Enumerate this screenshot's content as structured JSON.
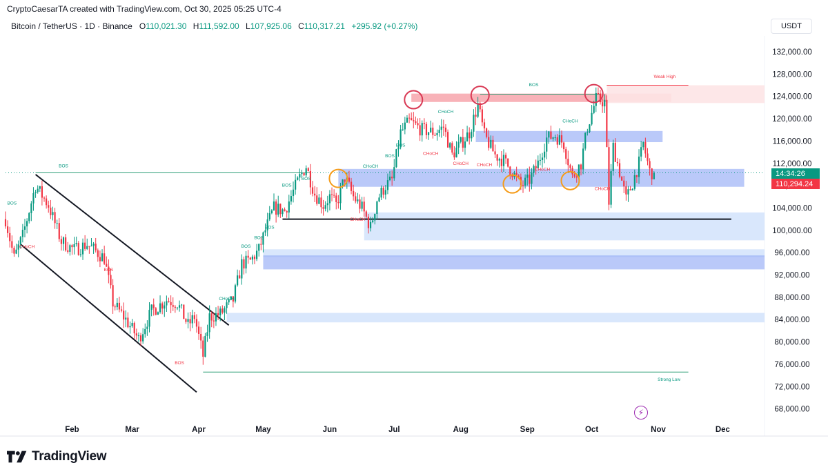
{
  "header": {
    "credit": "CryptoCaesarTA created with TradingView.com, Oct 30, 2025 05:25 UTC-4"
  },
  "symbol": {
    "name": "Bitcoin / TetherUS · 1D · Binance",
    "open_label": "O",
    "open": "110,021.30",
    "high_label": "H",
    "high": "111,592.00",
    "low_label": "L",
    "low": "107,925.06",
    "close_label": "C",
    "close": "110,317.21",
    "change": "+295.92 (+0.27%)"
  },
  "currency": "USDT",
  "price_tags": {
    "time": "14:34:26",
    "price": "110,294.24"
  },
  "footer": {
    "brand": "TradingView",
    "logo_icon": "tradingview-logo-icon"
  },
  "colors": {
    "up": "#089981",
    "down": "#f23645",
    "text": "#131722",
    "blue_zone": "#5b7cf5",
    "light_blue_zone": "#c8dcfa",
    "red_zone": "#f7a8ae",
    "orange": "#f59c1a",
    "circle_red": "#d93a55",
    "bos_green": "#2a9d75"
  },
  "chart_data": {
    "type": "candlestick",
    "title": "Bitcoin / TetherUS · 1D · Binance",
    "ylim": [
      66000,
      136000
    ],
    "yticks": [
      {
        "value": 132000,
        "label": "132,000.00"
      },
      {
        "value": 128000,
        "label": "128,000.00"
      },
      {
        "value": 124000,
        "label": "124,000.00"
      },
      {
        "value": 120000,
        "label": "120,000.00"
      },
      {
        "value": 116000,
        "label": "116,000.00"
      },
      {
        "value": 112000,
        "label": "112,000.00"
      },
      {
        "value": 108000,
        "label": "108,000.00"
      },
      {
        "value": 104000,
        "label": "104,000.00"
      },
      {
        "value": 100000,
        "label": "100,000.00"
      },
      {
        "value": 96000,
        "label": "96,000.00"
      },
      {
        "value": 92000,
        "label": "92,000.00"
      },
      {
        "value": 88000,
        "label": "88,000.00"
      },
      {
        "value": 84000,
        "label": "84,000.00"
      },
      {
        "value": 80000,
        "label": "80,000.00"
      },
      {
        "value": 76000,
        "label": "76,000.00"
      },
      {
        "value": 72000,
        "label": "72,000.00"
      },
      {
        "value": 68000,
        "label": "68,000.00"
      }
    ],
    "xticks": [
      "Feb",
      "Mar",
      "Apr",
      "May",
      "Jun",
      "Jul",
      "Aug",
      "Sep",
      "Oct",
      "Nov",
      "Dec"
    ],
    "x_days": {
      "Feb": 31,
      "Mar": 59,
      "Apr": 90,
      "May": 120,
      "Jun": 151,
      "Jul": 181,
      "Aug": 212,
      "Sep": 243,
      "Oct": 273,
      "Nov": 304,
      "Dec": 334
    },
    "last_day": 302,
    "current_price": 110294.24,
    "path": [
      [
        0,
        102000
      ],
      [
        4,
        95000
      ],
      [
        8,
        99000
      ],
      [
        14,
        108000
      ],
      [
        20,
        104500
      ],
      [
        26,
        98000
      ],
      [
        32,
        96500
      ],
      [
        38,
        97500
      ],
      [
        46,
        95000
      ],
      [
        50,
        87000
      ],
      [
        56,
        84000
      ],
      [
        62,
        80500
      ],
      [
        68,
        85500
      ],
      [
        75,
        87500
      ],
      [
        80,
        87000
      ],
      [
        85,
        83000
      ],
      [
        88,
        84500
      ],
      [
        92,
        77500
      ],
      [
        95,
        84500
      ],
      [
        100,
        85000
      ],
      [
        106,
        87500
      ],
      [
        110,
        94000
      ],
      [
        114,
        94500
      ],
      [
        118,
        96500
      ],
      [
        121,
        100000
      ],
      [
        125,
        104000
      ],
      [
        130,
        103500
      ],
      [
        134,
        107000
      ],
      [
        137,
        109500
      ],
      [
        140,
        111500
      ],
      [
        144,
        106500
      ],
      [
        148,
        104500
      ],
      [
        151,
        106000
      ],
      [
        154,
        104500
      ],
      [
        158,
        109500
      ],
      [
        162,
        106000
      ],
      [
        166,
        104000
      ],
      [
        170,
        100500
      ],
      [
        173,
        105500
      ],
      [
        177,
        108000
      ],
      [
        180,
        109000
      ],
      [
        184,
        117500
      ],
      [
        188,
        119500
      ],
      [
        194,
        118000
      ],
      [
        200,
        117500
      ],
      [
        204,
        118500
      ],
      [
        208,
        113500
      ],
      [
        212,
        115500
      ],
      [
        216,
        117500
      ],
      [
        220,
        122500
      ],
      [
        223,
        117000
      ],
      [
        228,
        113500
      ],
      [
        232,
        112500
      ],
      [
        236,
        110500
      ],
      [
        240,
        108000
      ],
      [
        244,
        109000
      ],
      [
        248,
        112000
      ],
      [
        252,
        116500
      ],
      [
        256,
        117000
      ],
      [
        260,
        115500
      ],
      [
        264,
        109500
      ],
      [
        268,
        112000
      ],
      [
        271,
        118500
      ],
      [
        275,
        123500
      ],
      [
        279,
        123000
      ],
      [
        281,
        105000
      ],
      [
        283,
        115000
      ],
      [
        286,
        110500
      ],
      [
        289,
        105500
      ],
      [
        292,
        108500
      ],
      [
        295,
        112000
      ],
      [
        297,
        115500
      ],
      [
        300,
        110500
      ],
      [
        302,
        110300
      ]
    ],
    "labels": [
      {
        "text": "BOS",
        "day": 27,
        "price": 111300,
        "color": "up"
      },
      {
        "text": "BOS",
        "day": 3,
        "price": 104600,
        "color": "up"
      },
      {
        "text": "CHoCH",
        "day": 10,
        "price": 96800,
        "color": "down"
      },
      {
        "text": "BOS",
        "day": 48,
        "price": 92700,
        "color": "down"
      },
      {
        "text": "BOS",
        "day": 81,
        "price": 76000,
        "color": "down"
      },
      {
        "text": "CHoCH",
        "day": 103,
        "price": 87500,
        "color": "up"
      },
      {
        "text": "BOS",
        "day": 112,
        "price": 96900,
        "color": "up"
      },
      {
        "text": "BOS",
        "day": 118,
        "price": 98400,
        "color": "up"
      },
      {
        "text": "BOS",
        "day": 123,
        "price": 100300,
        "color": "up"
      },
      {
        "text": "BOS",
        "day": 131,
        "price": 107800,
        "color": "up"
      },
      {
        "text": "BOS",
        "day": 140,
        "price": 109000,
        "color": "up"
      },
      {
        "text": "CHoCH",
        "day": 170,
        "price": 111200,
        "color": "up"
      },
      {
        "text": "CHoCH",
        "day": 164,
        "price": 101700,
        "color": "down"
      },
      {
        "text": "BOS",
        "day": 179,
        "price": 113100,
        "color": "up"
      },
      {
        "text": "BOS",
        "day": 184,
        "price": 115000,
        "color": "up"
      },
      {
        "text": "CHoCH",
        "day": 205,
        "price": 121000,
        "color": "up"
      },
      {
        "text": "CHoCH",
        "day": 198,
        "price": 113500,
        "color": "down"
      },
      {
        "text": "CHoCH",
        "day": 212,
        "price": 111700,
        "color": "down"
      },
      {
        "text": "CHoCH",
        "day": 223,
        "price": 111500,
        "color": "down"
      },
      {
        "text": "CHoCH",
        "day": 250,
        "price": 110700,
        "color": "down"
      },
      {
        "text": "CHoCH",
        "day": 263,
        "price": 119300,
        "color": "up"
      },
      {
        "text": "CHoCH",
        "day": 278,
        "price": 107200,
        "color": "down"
      },
      {
        "text": "BOS",
        "day": 246,
        "price": 125800,
        "color": "up"
      },
      {
        "text": "Weak High",
        "day": 307,
        "price": 127300,
        "color": "down"
      },
      {
        "text": "Strong Low",
        "day": 309,
        "price": 73000,
        "color": "up"
      }
    ],
    "zones": [
      {
        "kind": "red",
        "from_day": 189,
        "to_day": 310,
        "low": 123000,
        "high": 124500
      },
      {
        "kind": "blue",
        "from_day": 219,
        "to_day": 306,
        "low": 115800,
        "high": 117800
      },
      {
        "kind": "blue",
        "from_day": 155,
        "to_day": 344,
        "low": 107800,
        "high": 111000
      },
      {
        "kind": "light",
        "from_day": 167,
        "to_day": 354,
        "low": 98200,
        "high": 103200
      },
      {
        "kind": "light",
        "from_day": 120,
        "to_day": 354,
        "low": 95200,
        "high": 96600
      },
      {
        "kind": "blue",
        "from_day": 120,
        "to_day": 354,
        "low": 93000,
        "high": 95500
      },
      {
        "kind": "light",
        "from_day": 103,
        "to_day": 354,
        "low": 83500,
        "high": 85200
      },
      {
        "kind": "weak",
        "from_day": 280,
        "to_day": 355,
        "low": 122800,
        "high": 126000
      }
    ],
    "lines": [
      {
        "kind": "channel-upper",
        "from_day": 14,
        "from_price": 110000,
        "to_day": 104,
        "to_price": 83000
      },
      {
        "kind": "channel-lower",
        "from_day": 7,
        "from_price": 97500,
        "to_day": 89,
        "to_price": 71000
      },
      {
        "kind": "support",
        "from_day": 129,
        "to_day": 338,
        "price": 102000
      },
      {
        "kind": "bos-top",
        "from_day": 14,
        "to_day": 142,
        "price": 110300
      },
      {
        "kind": "bos-green",
        "from_day": 221,
        "to_day": 277,
        "price": 124400
      },
      {
        "kind": "strong-low",
        "from_day": 92,
        "to_day": 318,
        "price": 74600
      },
      {
        "kind": "weak-high",
        "from_day": 280,
        "to_day": 318,
        "price": 126000
      }
    ],
    "circles": [
      {
        "color": "red",
        "day": 190,
        "price": 123400
      },
      {
        "color": "red",
        "day": 221,
        "price": 124200
      },
      {
        "color": "red",
        "day": 274,
        "price": 124500
      },
      {
        "color": "orange",
        "day": 155,
        "price": 109300
      },
      {
        "color": "orange",
        "day": 236,
        "price": 108300
      },
      {
        "color": "orange",
        "day": 263,
        "price": 108900
      }
    ]
  }
}
